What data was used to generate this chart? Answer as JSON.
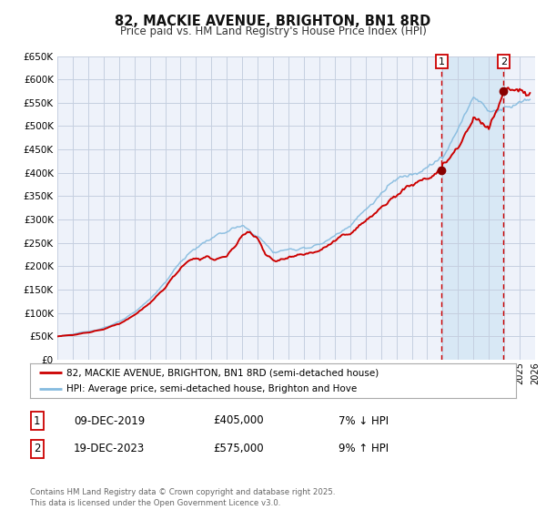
{
  "title": "82, MACKIE AVENUE, BRIGHTON, BN1 8RD",
  "subtitle": "Price paid vs. HM Land Registry's House Price Index (HPI)",
  "ylim": [
    0,
    650000
  ],
  "yticks": [
    0,
    50000,
    100000,
    150000,
    200000,
    250000,
    300000,
    350000,
    400000,
    450000,
    500000,
    550000,
    600000,
    650000
  ],
  "ytick_labels": [
    "£0",
    "£50K",
    "£100K",
    "£150K",
    "£200K",
    "£250K",
    "£300K",
    "£350K",
    "£400K",
    "£450K",
    "£500K",
    "£550K",
    "£600K",
    "£650K"
  ],
  "plot_bg_color": "#eef2fa",
  "grid_color": "#c5cfe0",
  "red_line_color": "#cc0000",
  "blue_line_color": "#85bbdf",
  "highlight_bg_color": "#d8e8f5",
  "vline_color": "#cc0000",
  "marker_color": "#880000",
  "sale1_x": 2019.94,
  "sale1_y": 405000,
  "sale1_label": "1",
  "sale2_x": 2023.96,
  "sale2_y": 575000,
  "sale2_label": "2",
  "legend_line1": "82, MACKIE AVENUE, BRIGHTON, BN1 8RD (semi-detached house)",
  "legend_line2": "HPI: Average price, semi-detached house, Brighton and Hove",
  "table_row1_num": "1",
  "table_row1_date": "09-DEC-2019",
  "table_row1_price": "£405,000",
  "table_row1_hpi": "7% ↓ HPI",
  "table_row2_num": "2",
  "table_row2_date": "19-DEC-2023",
  "table_row2_price": "£575,000",
  "table_row2_hpi": "9% ↑ HPI",
  "footer": "Contains HM Land Registry data © Crown copyright and database right 2025.\nThis data is licensed under the Open Government Licence v3.0.",
  "xmin": 1995,
  "xmax": 2026
}
